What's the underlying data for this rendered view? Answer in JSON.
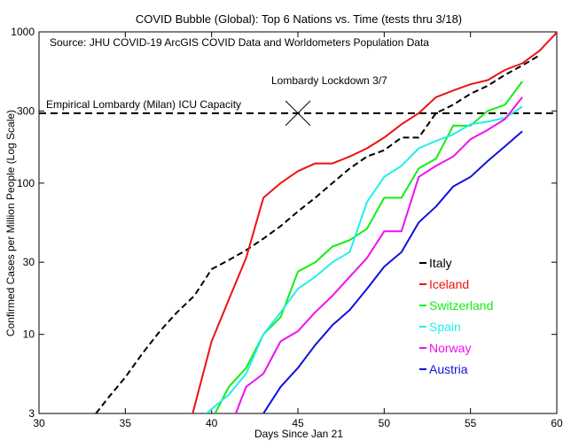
{
  "chart_data": {
    "type": "line",
    "title": "COVID Bubble (Global): Top 6 Nations vs. Time (tests thru 3/18)",
    "source_text": "Source: JHU COVID-19 ArcGIS COVID Data and Worldometers Population Data",
    "xlabel": "Days Since Jan 21",
    "ylabel": "Confirmed Cases per Million People (Log Scale)",
    "xlim": [
      30,
      60
    ],
    "ylim": [
      3,
      1000
    ],
    "yscale": "log",
    "grid": false,
    "legend_position": "right",
    "x_ticks": [
      30,
      35,
      40,
      45,
      50,
      55,
      60
    ],
    "y_ticks": [
      {
        "value": 3,
        "label": "3"
      },
      {
        "value": 10,
        "label": "10"
      },
      {
        "value": 30,
        "label": "30"
      },
      {
        "value": 100,
        "label": "100"
      },
      {
        "value": 300,
        "label": "300"
      },
      {
        "value": 1000,
        "label": "1000"
      }
    ],
    "reference_line": {
      "label": "Empirical Lombardy (Milan) ICU Capacity",
      "y": 290,
      "style": "dashed",
      "color": "#000000"
    },
    "annotation": {
      "label": "Lombardy Lockdown 3/7",
      "x": 45,
      "y": 290,
      "marker": "x"
    },
    "series": [
      {
        "name": "Italy",
        "color": "#000000",
        "dash": true,
        "points": [
          [
            33.3,
            3
          ],
          [
            34,
            3.8
          ],
          [
            35,
            5.2
          ],
          [
            36,
            7.5
          ],
          [
            37,
            10.5
          ],
          [
            38,
            14
          ],
          [
            39,
            18
          ],
          [
            40,
            27
          ],
          [
            41,
            31
          ],
          [
            42,
            36
          ],
          [
            43,
            43
          ],
          [
            44,
            52
          ],
          [
            45,
            65
          ],
          [
            46,
            80
          ],
          [
            47,
            100
          ],
          [
            48,
            125
          ],
          [
            49,
            150
          ],
          [
            50,
            165
          ],
          [
            51,
            200
          ],
          [
            52,
            200
          ],
          [
            53,
            290
          ],
          [
            54,
            330
          ],
          [
            55,
            390
          ],
          [
            56,
            440
          ],
          [
            57,
            520
          ],
          [
            58,
            600
          ],
          [
            59,
            700
          ]
        ]
      },
      {
        "name": "Iceland",
        "color": "#ee1111",
        "dash": false,
        "points": [
          [
            38.9,
            3
          ],
          [
            40,
            9
          ],
          [
            41,
            17
          ],
          [
            42,
            32
          ],
          [
            43,
            80
          ],
          [
            44,
            100
          ],
          [
            45,
            120
          ],
          [
            46,
            135
          ],
          [
            47,
            135
          ],
          [
            48,
            150
          ],
          [
            49,
            170
          ],
          [
            50,
            200
          ],
          [
            51,
            245
          ],
          [
            52,
            290
          ],
          [
            53,
            370
          ],
          [
            54,
            410
          ],
          [
            55,
            450
          ],
          [
            56,
            480
          ],
          [
            57,
            560
          ],
          [
            58,
            620
          ],
          [
            59,
            750
          ],
          [
            60,
            990
          ]
        ]
      },
      {
        "name": "Switzerland",
        "color": "#11ee11",
        "dash": false,
        "points": [
          [
            40.2,
            3
          ],
          [
            41,
            4.5
          ],
          [
            42,
            6
          ],
          [
            43,
            10
          ],
          [
            44,
            13
          ],
          [
            45,
            26
          ],
          [
            46,
            30
          ],
          [
            47,
            38
          ],
          [
            48,
            42
          ],
          [
            49,
            50
          ],
          [
            50,
            80
          ],
          [
            51,
            80
          ],
          [
            52,
            125
          ],
          [
            53,
            145
          ],
          [
            54,
            240
          ],
          [
            55,
            240
          ],
          [
            56,
            300
          ],
          [
            57,
            330
          ],
          [
            58,
            470
          ]
        ]
      },
      {
        "name": "Spain",
        "color": "#22eeee",
        "dash": false,
        "points": [
          [
            39.7,
            3
          ],
          [
            41,
            4
          ],
          [
            42,
            5.5
          ],
          [
            43,
            10
          ],
          [
            44,
            14
          ],
          [
            45,
            20
          ],
          [
            46,
            24
          ],
          [
            47,
            30
          ],
          [
            48,
            35
          ],
          [
            49,
            75
          ],
          [
            50,
            110
          ],
          [
            51,
            130
          ],
          [
            52,
            170
          ],
          [
            53,
            190
          ],
          [
            54,
            210
          ],
          [
            55,
            245
          ],
          [
            56,
            255
          ],
          [
            57,
            270
          ],
          [
            58,
            320
          ]
        ]
      },
      {
        "name": "Norway",
        "color": "#ee11ee",
        "dash": false,
        "points": [
          [
            41.4,
            3
          ],
          [
            42,
            4.5
          ],
          [
            43,
            5.5
          ],
          [
            44,
            9
          ],
          [
            45,
            10.5
          ],
          [
            46,
            14
          ],
          [
            47,
            18
          ],
          [
            48,
            24
          ],
          [
            49,
            32
          ],
          [
            50,
            48
          ],
          [
            51,
            48
          ],
          [
            52,
            110
          ],
          [
            53,
            130
          ],
          [
            54,
            150
          ],
          [
            55,
            195
          ],
          [
            56,
            225
          ],
          [
            57,
            265
          ],
          [
            58,
            370
          ]
        ]
      },
      {
        "name": "Austria",
        "color": "#1111dd",
        "dash": false,
        "points": [
          [
            43,
            3
          ],
          [
            44,
            4.5
          ],
          [
            45,
            6
          ],
          [
            46,
            8.5
          ],
          [
            47,
            11.5
          ],
          [
            48,
            14.5
          ],
          [
            49,
            20
          ],
          [
            50,
            28
          ],
          [
            51,
            35
          ],
          [
            52,
            55
          ],
          [
            53,
            70
          ],
          [
            54,
            95
          ],
          [
            55,
            110
          ],
          [
            56,
            140
          ],
          [
            57,
            175
          ],
          [
            58,
            220
          ]
        ]
      }
    ]
  }
}
